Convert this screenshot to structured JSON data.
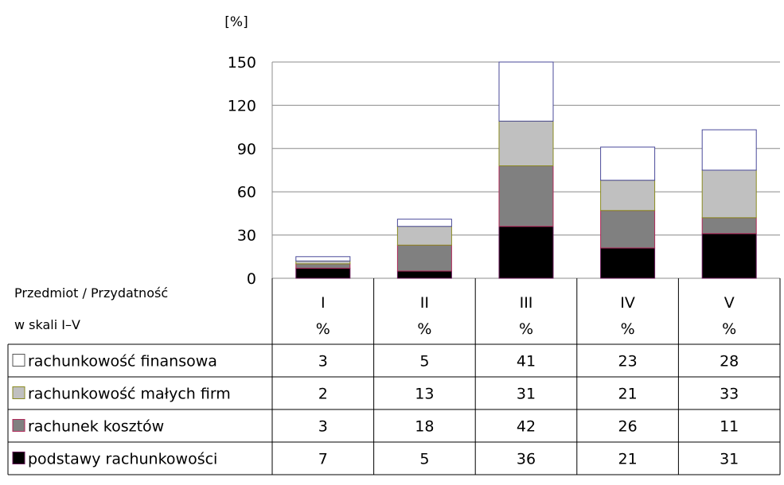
{
  "chart_data": {
    "type": "bar",
    "stacked": true,
    "ylabel": "[%]",
    "ylim": [
      0,
      150
    ],
    "yticks": [
      "0",
      "30",
      "60",
      "90",
      "120",
      "150"
    ],
    "grid": true,
    "corner_label": [
      "Przedmiot / Przydatność",
      "w skali I–V"
    ],
    "categories": [
      "I",
      "II",
      "III",
      "IV",
      "V"
    ],
    "unit_row": [
      "%",
      "%",
      "%",
      "%",
      "%"
    ],
    "series": [
      {
        "name": "podstawy rachunkowości",
        "values": [
          7,
          5,
          36,
          21,
          31
        ],
        "color": "#000000",
        "edge": "#6a1a5a"
      },
      {
        "name": "rachunek kosztów",
        "values": [
          3,
          18,
          42,
          26,
          11
        ],
        "color": "#808080",
        "edge": "#b02a5a"
      },
      {
        "name": "rachunkowość małych firm",
        "values": [
          2,
          13,
          31,
          21,
          33
        ],
        "color": "#c0c0c0",
        "edge": "#8a8a20"
      },
      {
        "name": "rachunkowość finansowa",
        "values": [
          3,
          5,
          41,
          23,
          28
        ],
        "color": "#ffffff",
        "edge": "#4a4a9a"
      }
    ]
  }
}
